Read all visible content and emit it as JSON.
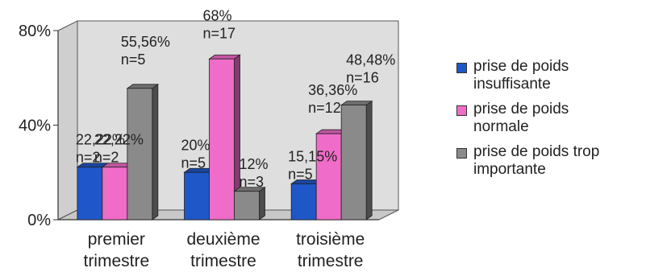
{
  "chart_data": {
    "type": "bar",
    "categories": [
      "premier\ntrimestre",
      "deuxième\ntrimestre",
      "troisième\ntrimestre"
    ],
    "series": [
      {
        "name": "prise de poids\ninsuffisante",
        "color": "#1f57c8",
        "values": [
          22.22,
          20,
          15.15
        ],
        "labels": [
          "22,22%\nn=2",
          "20%\nn=5",
          "15,15%\nn=5"
        ]
      },
      {
        "name": "prise de poids\nnormale",
        "color": "#f06cc9",
        "values": [
          22.22,
          68,
          36.36
        ],
        "labels": [
          "22,22%\nn=2",
          "68%\nn=17",
          "36,36%\nn=12"
        ]
      },
      {
        "name": "prise de poids trop\nimportante",
        "color": "#8a8a8a",
        "values": [
          55.56,
          12,
          48.48
        ],
        "labels": [
          "55,56%\nn=5",
          "12%\nn=3",
          "48,48%\nn=16"
        ]
      }
    ],
    "yticks": [
      "0%",
      "40%",
      "80%"
    ],
    "ylim": [
      0,
      80
    ],
    "grid": false,
    "legend": "right",
    "title": "",
    "xlabel": "",
    "ylabel": ""
  }
}
